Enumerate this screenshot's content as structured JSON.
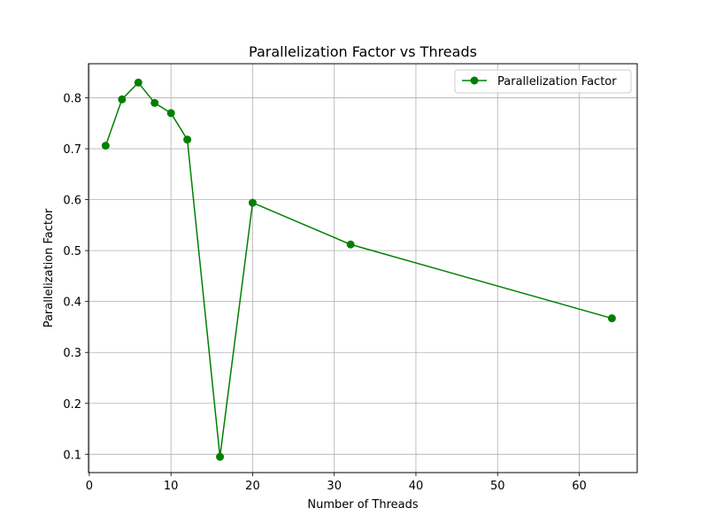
{
  "chart_data": {
    "type": "line",
    "title": "Parallelization Factor vs Threads",
    "xlabel": "Number of Threads",
    "ylabel": "Parallelization Factor",
    "xlim": [
      -0.1,
      67.1
    ],
    "ylim": [
      0.064,
      0.867
    ],
    "xticks": [
      0,
      10,
      20,
      30,
      40,
      50,
      60
    ],
    "yticks": [
      0.1,
      0.2,
      0.3,
      0.4,
      0.5,
      0.6,
      0.7,
      0.8
    ],
    "xtick_labels": [
      "0",
      "10",
      "20",
      "30",
      "40",
      "50",
      "60"
    ],
    "ytick_labels": [
      "0.1",
      "0.2",
      "0.3",
      "0.4",
      "0.5",
      "0.6",
      "0.7",
      "0.8"
    ],
    "grid": true,
    "legend_position": "top-right",
    "series": [
      {
        "name": "Parallelization Factor",
        "color": "#008000",
        "marker": "circle",
        "x": [
          2,
          4,
          6,
          8,
          10,
          12,
          16,
          20,
          32,
          64
        ],
        "y": [
          0.706,
          0.797,
          0.83,
          0.79,
          0.77,
          0.718,
          0.095,
          0.594,
          0.512,
          0.367
        ]
      }
    ]
  }
}
